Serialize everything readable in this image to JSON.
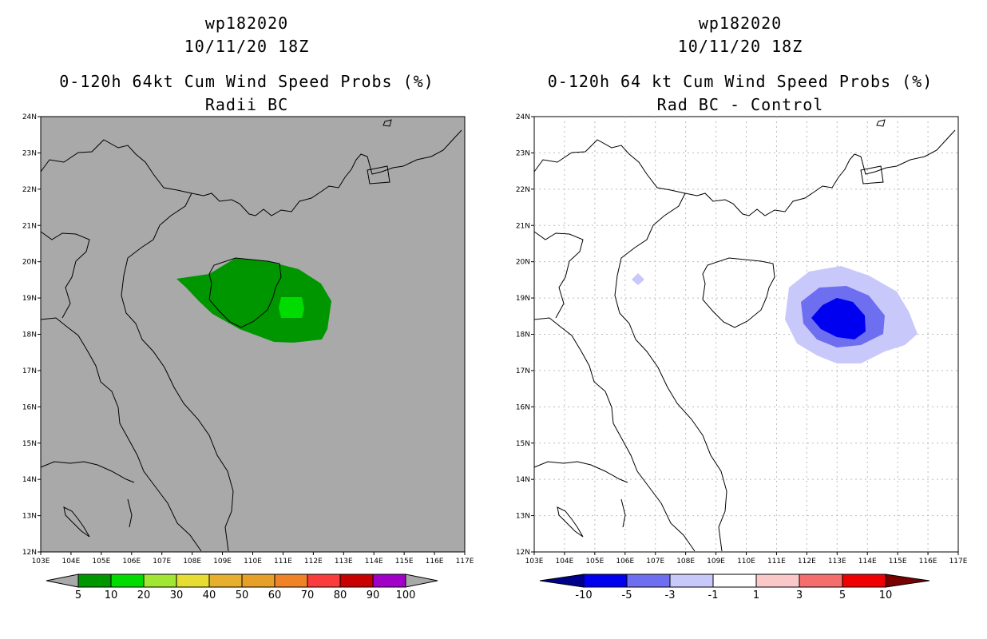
{
  "panels": [
    {
      "id": "left",
      "title_storm": "wp182020",
      "title_date": "10/11/20 18Z",
      "title_product": "0-120h 64kt Cum Wind Speed Probs (%)",
      "title_subtitle": "Radii BC",
      "background_color": "#a9a9a9",
      "x_ticks": [
        "103E",
        "104E",
        "105E",
        "106E",
        "107E",
        "108E",
        "109E",
        "110E",
        "111E",
        "112E",
        "113E",
        "114E",
        "115E",
        "116E",
        "117E"
      ],
      "y_ticks": [
        "12N",
        "13N",
        "14N",
        "15N",
        "16N",
        "17N",
        "18N",
        "19N",
        "20N",
        "21N",
        "22N",
        "23N",
        "24N"
      ],
      "colorbar": {
        "colors": [
          "#009600",
          "#00dc00",
          "#a0e632",
          "#e6dc32",
          "#e6af2d",
          "#e6a028",
          "#f08228",
          "#fa3c3c",
          "#c80000",
          "#a000c8"
        ],
        "labels": [
          "5",
          "10",
          "20",
          "30",
          "40",
          "50",
          "60",
          "70",
          "80",
          "90",
          "100"
        ]
      }
    },
    {
      "id": "right",
      "title_storm": "wp182020",
      "title_date": "10/11/20 18Z",
      "title_product": "0-120h 64 kt Cum Wind Speed Probs (%)",
      "title_subtitle": "Rad BC - Control",
      "background_color": "#ffffff",
      "x_ticks": [
        "103E",
        "104E",
        "105E",
        "106E",
        "107E",
        "108E",
        "109E",
        "110E",
        "111E",
        "112E",
        "113E",
        "114E",
        "115E",
        "116E",
        "117E"
      ],
      "y_ticks": [
        "12N",
        "13N",
        "14N",
        "15N",
        "16N",
        "17N",
        "18N",
        "19N",
        "20N",
        "21N",
        "22N",
        "23N",
        "24N"
      ],
      "colorbar": {
        "left_arrow_color": "#00008c",
        "right_arrow_color": "#780000",
        "colors": [
          "#0000f0",
          "#6e6ef0",
          "#c8c8fa",
          "#ffffff",
          "#fac8c8",
          "#f56e6e",
          "#f00000"
        ],
        "labels": [
          "-10",
          "-5",
          "-3",
          "-1",
          "1",
          "3",
          "5",
          "10"
        ]
      }
    }
  ],
  "contours": {
    "left": [
      {
        "level": "5-10",
        "color": "#009600"
      },
      {
        "level": "10-20",
        "color": "#00dc00"
      }
    ],
    "right": [
      {
        "level": "-1 to -3",
        "color": "#c8c8fa"
      },
      {
        "level": "-3 to -5",
        "color": "#6e6ef0"
      },
      {
        "level": "-5 to -10",
        "color": "#0000f0"
      }
    ]
  }
}
